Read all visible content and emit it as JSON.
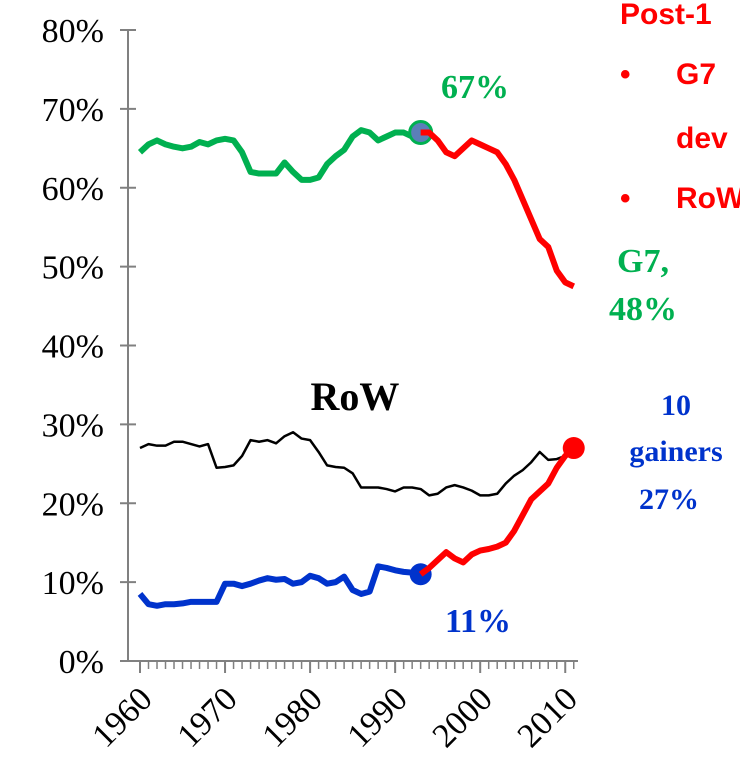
{
  "chart_data": {
    "type": "line",
    "x": [
      1960,
      1961,
      1962,
      1963,
      1964,
      1965,
      1966,
      1967,
      1968,
      1969,
      1970,
      1971,
      1972,
      1973,
      1974,
      1975,
      1976,
      1977,
      1978,
      1979,
      1980,
      1981,
      1982,
      1983,
      1984,
      1985,
      1986,
      1987,
      1988,
      1989,
      1990,
      1991,
      1992,
      1993,
      1994,
      1995,
      1996,
      1997,
      1998,
      1999,
      2000,
      2001,
      2002,
      2003,
      2004,
      2005,
      2006,
      2007,
      2008,
      2009,
      2010,
      2011
    ],
    "xlim": [
      1960,
      2011.5
    ],
    "xticks": [
      1960,
      1970,
      1980,
      1990,
      2000,
      2010
    ],
    "ylim": [
      0,
      80
    ],
    "yticks": [
      {
        "value": 0,
        "label": "0%"
      },
      {
        "value": 10,
        "label": "10%"
      },
      {
        "value": 20,
        "label": "20%"
      },
      {
        "value": 30,
        "label": "30%"
      },
      {
        "value": 40,
        "label": "40%"
      },
      {
        "value": 50,
        "label": "50%"
      },
      {
        "value": 60,
        "label": "60%"
      },
      {
        "value": 70,
        "label": "70%"
      },
      {
        "value": 80,
        "label": "80%"
      }
    ],
    "series": [
      {
        "color": "#00b050",
        "width": 6,
        "values": [
          64.5,
          65.5,
          66,
          65.5,
          65.2,
          65,
          65.2,
          65.8,
          65.5,
          66,
          66.2,
          66,
          64.5,
          62,
          61.8,
          61.8,
          61.8,
          63.2,
          62,
          61,
          61,
          61.3,
          63,
          64,
          64.8,
          66.5,
          67.3,
          67,
          66,
          66.5,
          67,
          67,
          66.5,
          67,
          null,
          null,
          null,
          null,
          null,
          null,
          null,
          null,
          null,
          null,
          null,
          null,
          null,
          null,
          null,
          null,
          null,
          null
        ],
        "end_marker": "#5b7fb8"
      },
      {
        "color": "#ff0000",
        "width": 6,
        "values": [
          null,
          null,
          null,
          null,
          null,
          null,
          null,
          null,
          null,
          null,
          null,
          null,
          null,
          null,
          null,
          null,
          null,
          null,
          null,
          null,
          null,
          null,
          null,
          null,
          null,
          null,
          null,
          null,
          null,
          null,
          null,
          null,
          null,
          67,
          67,
          66,
          64.5,
          64,
          65,
          66,
          65.5,
          65,
          64.5,
          63,
          61,
          58.5,
          56,
          53.5,
          52.5,
          49.5,
          48,
          47.5
        ]
      },
      {
        "color": "#000000",
        "width": 2.5,
        "values": [
          27,
          27.5,
          27.3,
          27.3,
          27.8,
          27.8,
          27.5,
          27.2,
          27.5,
          24.5,
          24.6,
          24.8,
          26,
          28,
          27.8,
          28,
          27.6,
          28.5,
          29,
          28.2,
          28,
          26.5,
          24.8,
          24.6,
          24.5,
          23.8,
          22,
          22,
          22,
          21.8,
          21.5,
          22,
          22,
          21.8,
          21,
          21.2,
          22,
          22.3,
          22,
          21.6,
          21,
          21,
          21.2,
          22.5,
          23.5,
          24.2,
          25.2,
          26.5,
          25.5,
          25.6,
          26,
          26
        ]
      },
      {
        "color": "#0033cc",
        "width": 6,
        "values": [
          8.5,
          7.2,
          7,
          7.2,
          7.2,
          7.3,
          7.5,
          7.5,
          7.5,
          7.5,
          9.8,
          9.8,
          9.5,
          9.8,
          10.2,
          10.5,
          10.3,
          10.4,
          9.8,
          10,
          10.8,
          10.5,
          9.8,
          10,
          10.7,
          9,
          8.5,
          8.8,
          12,
          11.8,
          11.5,
          11.3,
          11.2,
          11,
          null,
          null,
          null,
          null,
          null,
          null,
          null,
          null,
          null,
          null,
          null,
          null,
          null,
          null,
          null,
          null,
          null,
          null
        ],
        "end_marker": "#0033cc"
      },
      {
        "color": "#ff0000",
        "width": 6,
        "values": [
          null,
          null,
          null,
          null,
          null,
          null,
          null,
          null,
          null,
          null,
          null,
          null,
          null,
          null,
          null,
          null,
          null,
          null,
          null,
          null,
          null,
          null,
          null,
          null,
          null,
          null,
          null,
          null,
          null,
          null,
          null,
          null,
          null,
          11,
          11.8,
          12.8,
          13.8,
          13,
          12.5,
          13.5,
          14,
          14.2,
          14.5,
          15,
          16.5,
          18.5,
          20.5,
          21.5,
          22.5,
          24.5,
          26,
          27
        ],
        "end_marker": "#ff0000"
      }
    ],
    "annotations": [
      "67%",
      "G7,",
      "48%",
      "RoW",
      "10",
      "gainers",
      "27%",
      "11%"
    ],
    "side_text": [
      "Post-1",
      "•",
      "G7",
      "dev",
      "•",
      "RoW"
    ]
  }
}
